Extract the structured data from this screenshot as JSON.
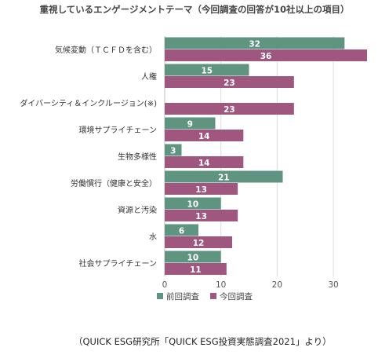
{
  "chart_data": {
    "type": "bar",
    "orientation": "horizontal",
    "title": "重視しているエンゲージメントテーマ（今回調査の回答が10社以上の項目）",
    "categories": [
      "気候変動（ＴＣＦＤを含む）",
      "人権",
      "ダイバーシティ＆インクルージョン(※)",
      "環境サプライチェーン",
      "生物多様性",
      "労働慣行（健康と安全）",
      "資源と汚染",
      "水",
      "社会サプライチェーン"
    ],
    "series": [
      {
        "name": "前回調査",
        "color": "#5e9480",
        "values": [
          32,
          15,
          null,
          9,
          3,
          21,
          10,
          6,
          10
        ]
      },
      {
        "name": "今回調査",
        "color": "#a0577f",
        "values": [
          36,
          23,
          23,
          14,
          14,
          13,
          13,
          12,
          11
        ]
      }
    ],
    "xlim": [
      0,
      36
    ],
    "xticks": [
      0,
      10,
      20,
      30
    ],
    "grid": true,
    "legend": "bottom"
  },
  "source": "（QUICK ESG研究所「QUICK ESG投資実態調査2021」より）"
}
